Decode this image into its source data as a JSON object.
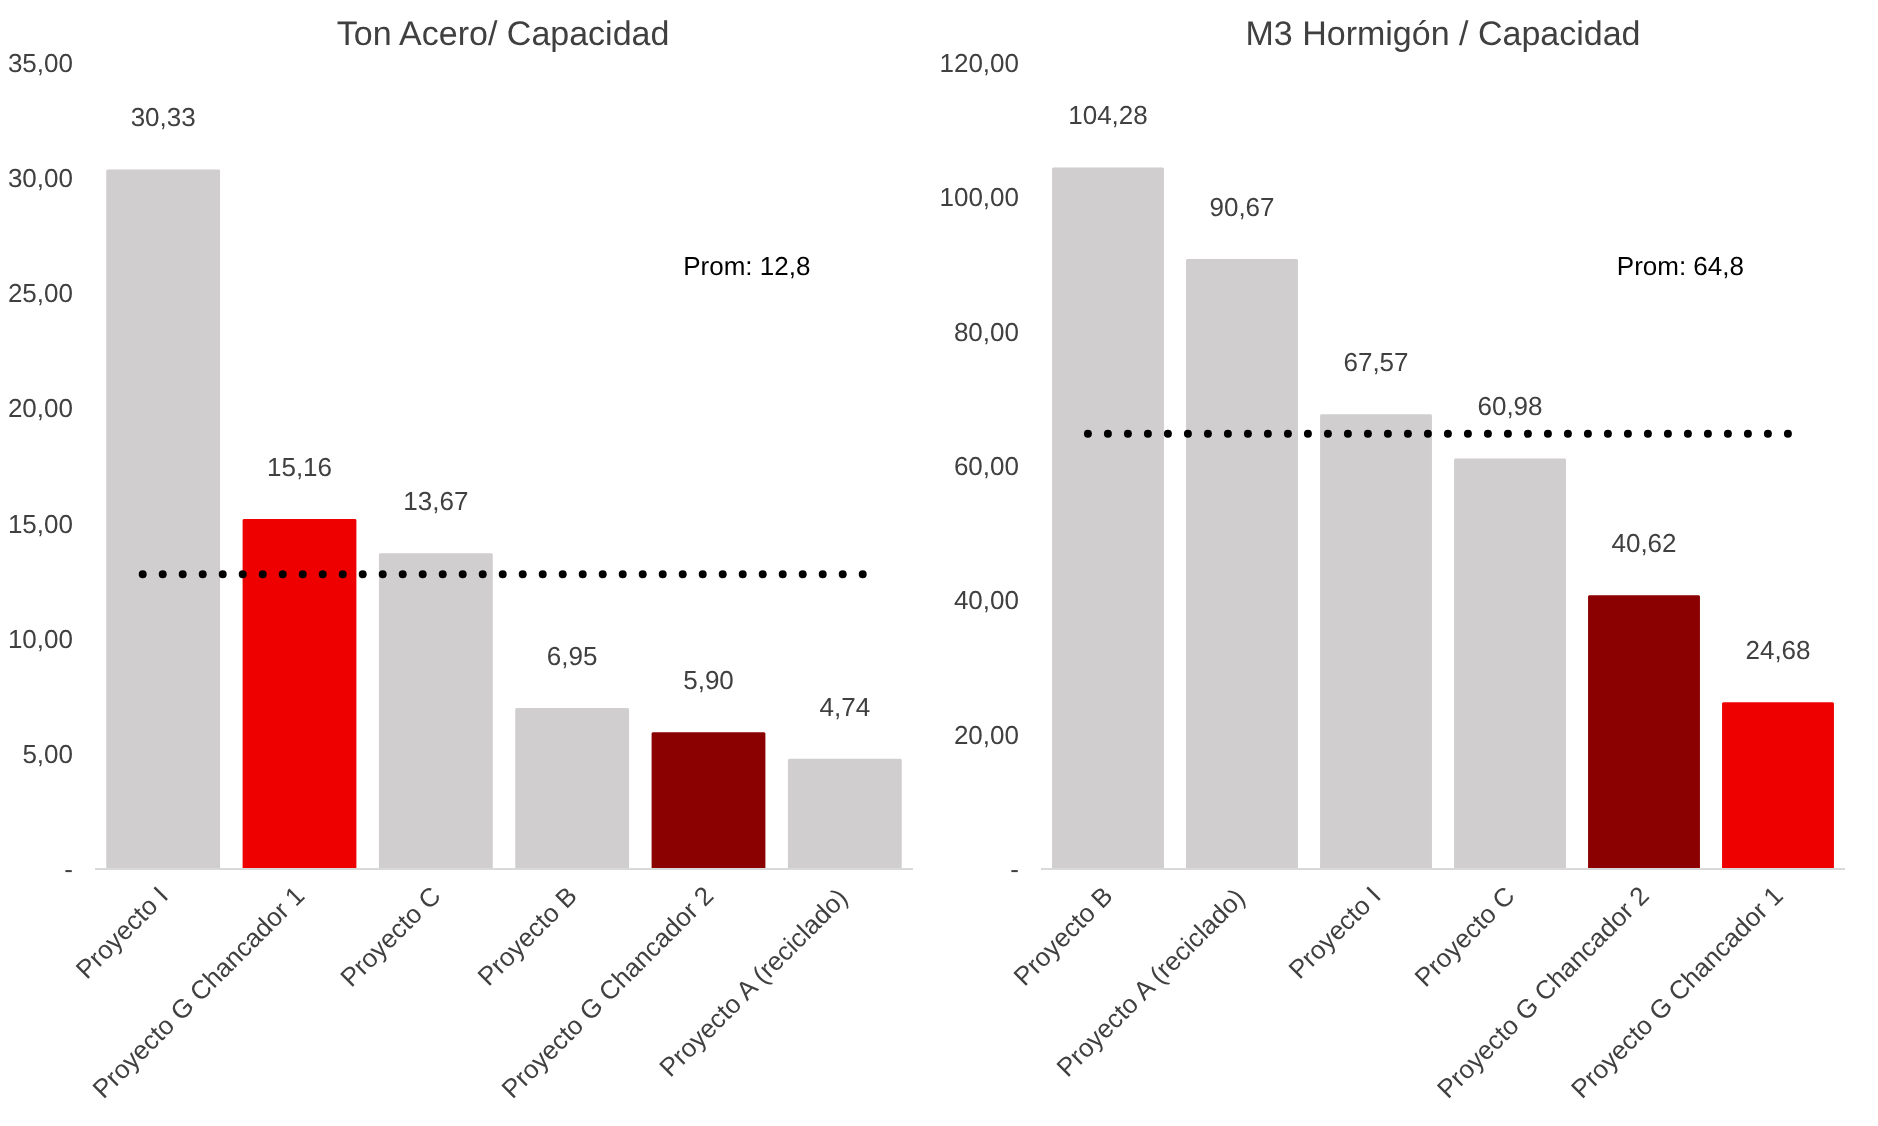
{
  "chart_data": [
    {
      "type": "bar",
      "title": "Ton Acero/ Capacidad",
      "categories": [
        "Proyecto I",
        "Proyecto G Chancador 1",
        "Proyecto C",
        "Proyecto B",
        "Proyecto G Chancador 2",
        "Proyecto A (reciclado)"
      ],
      "values": [
        30.33,
        15.16,
        13.67,
        6.95,
        5.9,
        4.74
      ],
      "colors": [
        "#d0cece",
        "#ee0000",
        "#d0cece",
        "#d0cece",
        "#8b0000",
        "#d0cece"
      ],
      "value_labels": [
        "30,33",
        "15,16",
        "13,67",
        "6,95",
        "5,90",
        "4,74"
      ],
      "ylim": [
        0,
        35
      ],
      "yticks": [
        {
          "value": 0,
          "label": "-"
        },
        {
          "value": 5,
          "label": "5,00"
        },
        {
          "value": 10,
          "label": "10,00"
        },
        {
          "value": 15,
          "label": "15,00"
        },
        {
          "value": 20,
          "label": "20,00"
        },
        {
          "value": 25,
          "label": "25,00"
        },
        {
          "value": 30,
          "label": "30,00"
        },
        {
          "value": 35,
          "label": "35,00"
        }
      ],
      "ref_lines": [
        {
          "axis": "y",
          "value": 12.8,
          "label": "Prom:  12,8",
          "color": "#000000",
          "line_style": "dotted"
        }
      ],
      "grid": false
    },
    {
      "type": "bar",
      "title": "M3 Hormigón / Capacidad",
      "categories": [
        "Proyecto B",
        "Proyecto A (reciclado)",
        "Proyecto I",
        "Proyecto C",
        "Proyecto G Chancador 2",
        "Proyecto G Chancador 1"
      ],
      "values": [
        104.28,
        90.67,
        67.57,
        60.98,
        40.62,
        24.68
      ],
      "colors": [
        "#d0cece",
        "#d0cece",
        "#d0cece",
        "#d0cece",
        "#8b0000",
        "#ee0000"
      ],
      "value_labels": [
        "104,28",
        "90,67",
        "67,57",
        "60,98",
        "40,62",
        "24,68"
      ],
      "ylim": [
        0,
        120
      ],
      "yticks": [
        {
          "value": 0,
          "label": "-"
        },
        {
          "value": 20,
          "label": "20,00"
        },
        {
          "value": 40,
          "label": "40,00"
        },
        {
          "value": 60,
          "label": "60,00"
        },
        {
          "value": 80,
          "label": "80,00"
        },
        {
          "value": 100,
          "label": "100,00"
        },
        {
          "value": 120,
          "label": "120,00"
        }
      ],
      "ref_lines": [
        {
          "axis": "y",
          "value": 64.8,
          "label": "Prom:  64,8",
          "color": "#000000",
          "line_style": "dotted"
        }
      ],
      "grid": false
    }
  ]
}
